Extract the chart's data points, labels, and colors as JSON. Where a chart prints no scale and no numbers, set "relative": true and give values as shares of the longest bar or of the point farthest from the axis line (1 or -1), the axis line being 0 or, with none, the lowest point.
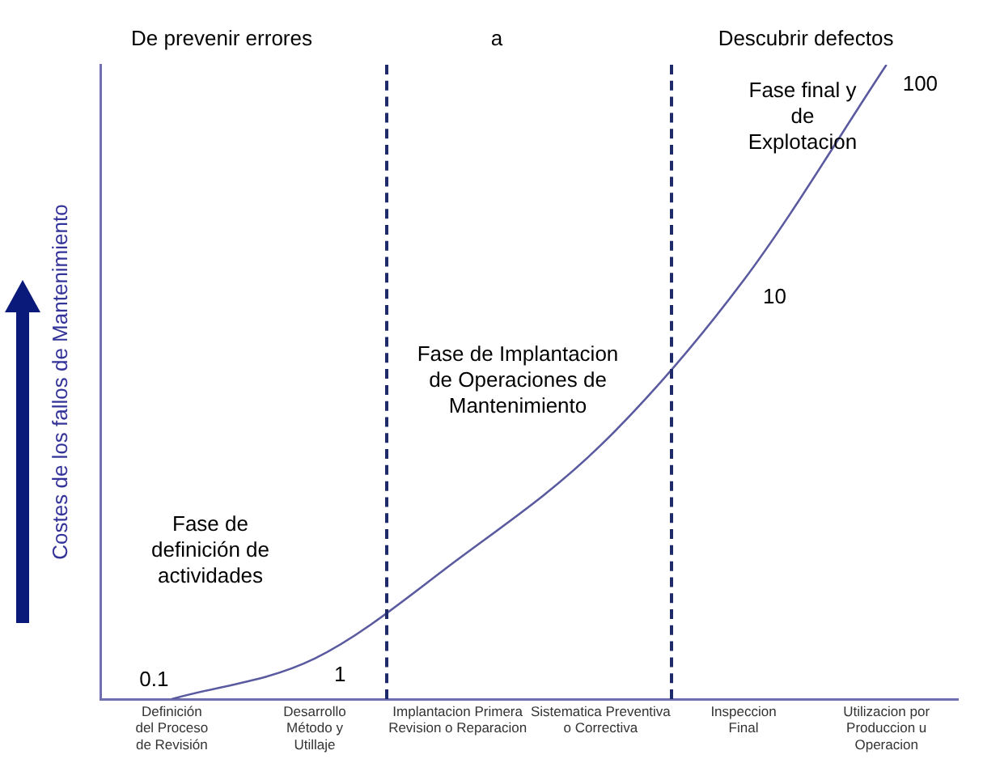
{
  "chart_data": {
    "type": "line",
    "relative": true,
    "ylabel": "Costes de los fallos de Mantenimiento",
    "categories": [
      "Definición\ndel Proceso\nde Revisión",
      "Desarrollo\nMétodo y\nUtillaje",
      "Implantacion Primera\nRevision o Reparacion",
      "Sistematica Preventiva\no Correctiva",
      "Inspeccion\nFinal",
      "Utilizacion por\nProduccion u\nOperacion"
    ],
    "series": [
      {
        "color": "#5a5aa0",
        "values": [
          0,
          0.064,
          0.22,
          0.4,
          0.66,
          1
        ]
      }
    ],
    "annotations": [
      "De prevenir errores",
      "a",
      "Descubrir defectos",
      "Fase de\ndefinición de\nactividades",
      "Fase de Implantacion\nde Operaciones de\nMantenimiento",
      "Fase final y\nde\nExplotacion",
      {
        "text": "0.1",
        "x": "Definición\ndel Proceso\nde Revisión",
        "y": 0
      },
      {
        "text": "1",
        "x": "Desarrollo\nMétodo y\nUtillaje",
        "y": 0.064
      },
      {
        "text": "10",
        "x": "Inspeccion\nFinal",
        "y": 0.66
      },
      {
        "text": "100",
        "x": "Utilizacion por\nProduccion u\nOperacion",
        "y": 1
      }
    ],
    "grid": false,
    "legend": false,
    "marker": "none",
    "line_style": "solid"
  }
}
